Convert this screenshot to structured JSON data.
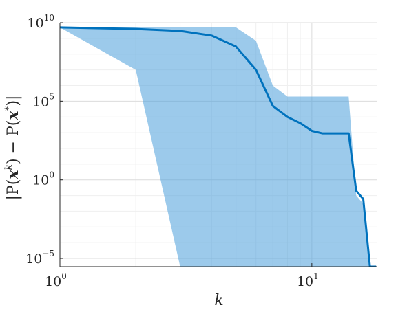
{
  "chart_data": {
    "type": "line",
    "xlabel": "k",
    "ylabel": "|P(x^k) − P(x*)|",
    "ylabel_parts": {
      "left": "|P(",
      "xk_base": "x",
      "xk_sup": "k",
      "mid": ") − P(",
      "xs_base": "x",
      "xs_sup": "*",
      "right": ")|"
    },
    "x_scale": "log",
    "y_scale": "log",
    "xlim": [
      1,
      18.2
    ],
    "ylim": [
      3e-06,
      10000000000
    ],
    "grid": true,
    "x_ticks": [
      {
        "value": 1,
        "base": "10",
        "exp": "0"
      },
      {
        "value": 10,
        "base": "10",
        "exp": "1"
      }
    ],
    "y_ticks": [
      {
        "value": 1e-05,
        "base": "10",
        "exp": "−5"
      },
      {
        "value": 1,
        "base": "10",
        "exp": "0"
      },
      {
        "value": 100000,
        "base": "10",
        "exp": "5"
      },
      {
        "value": 10000000000,
        "base": "10",
        "exp": "10"
      }
    ],
    "series": [
      {
        "color": "#0072BD",
        "x": [
          1,
          2,
          3,
          4,
          5,
          6,
          7,
          8,
          9,
          10,
          11,
          12,
          13,
          14,
          15,
          16,
          17,
          18
        ],
        "values": [
          5000000000,
          4000000000,
          3000000000,
          1500000000,
          300000000,
          10000000,
          50000,
          10000,
          4000,
          1300,
          900,
          900,
          900,
          900,
          0.2,
          0.06,
          3e-06,
          3e-06
        ]
      }
    ],
    "band": {
      "color": "#4a9fdb",
      "x": [
        1,
        2,
        3,
        4,
        5,
        6,
        7,
        8,
        9,
        10,
        11,
        12,
        13,
        14,
        15,
        16,
        17,
        18
      ],
      "upper": [
        5000000000,
        5000000000,
        5000000000,
        5000000000,
        5000000000,
        700000000,
        1000000,
        200000,
        200000,
        200000,
        200000,
        200000,
        200000,
        200000,
        0.1,
        0.03,
        3e-06,
        3e-06
      ],
      "lower": [
        5000000000,
        10000000,
        3e-06,
        3e-06,
        3e-06,
        3e-06,
        3e-06,
        3e-06,
        3e-06,
        3e-06,
        3e-06,
        3e-06,
        3e-06,
        3e-06,
        3e-06,
        3e-06,
        3e-06,
        3e-06
      ]
    }
  }
}
